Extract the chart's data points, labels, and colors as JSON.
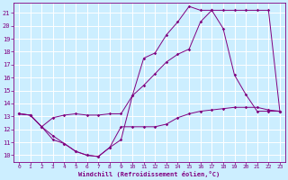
{
  "xlabel": "Windchill (Refroidissement éolien,°C)",
  "bg_color": "#cceeff",
  "line_color": "#800080",
  "grid_color": "#ffffff",
  "xlim": [
    -0.5,
    23.5
  ],
  "ylim": [
    9.5,
    21.8
  ],
  "xticks": [
    0,
    1,
    2,
    3,
    4,
    5,
    6,
    7,
    8,
    9,
    10,
    11,
    12,
    13,
    14,
    15,
    16,
    17,
    18,
    19,
    20,
    21,
    22,
    23
  ],
  "yticks": [
    10,
    11,
    12,
    13,
    14,
    15,
    16,
    17,
    18,
    19,
    20,
    21
  ],
  "line1_x": [
    0,
    1,
    2,
    3,
    4,
    5,
    6,
    7,
    8,
    9,
    10,
    11,
    12,
    13,
    14,
    15,
    16,
    17,
    18,
    19,
    20,
    21,
    22,
    23
  ],
  "line1_y": [
    13.2,
    13.1,
    12.2,
    11.5,
    10.9,
    10.3,
    10.0,
    9.9,
    10.6,
    12.2,
    12.2,
    12.2,
    12.2,
    12.4,
    12.9,
    13.2,
    13.4,
    13.5,
    13.6,
    13.7,
    13.7,
    13.7,
    13.5,
    13.4
  ],
  "line2_x": [
    0,
    1,
    2,
    3,
    4,
    5,
    6,
    7,
    8,
    9,
    10,
    11,
    12,
    13,
    14,
    15,
    16,
    17,
    18,
    19,
    20,
    21,
    22,
    23
  ],
  "line2_y": [
    13.2,
    13.1,
    12.2,
    12.9,
    13.1,
    13.2,
    13.1,
    13.1,
    13.2,
    13.2,
    14.6,
    15.4,
    16.3,
    17.2,
    17.8,
    18.2,
    20.3,
    21.2,
    21.2,
    21.2,
    21.2,
    21.2,
    21.2,
    13.4
  ],
  "line3_x": [
    0,
    1,
    2,
    3,
    4,
    5,
    6,
    7,
    8,
    9,
    10,
    11,
    12,
    13,
    14,
    15,
    16,
    17,
    18,
    19,
    20,
    21,
    22,
    23
  ],
  "line3_y": [
    13.2,
    13.1,
    12.2,
    11.2,
    10.9,
    10.3,
    10.0,
    9.9,
    10.6,
    11.2,
    14.6,
    17.5,
    17.9,
    19.3,
    20.3,
    21.5,
    21.2,
    21.2,
    19.8,
    16.2,
    14.7,
    13.4,
    13.4,
    13.4
  ]
}
